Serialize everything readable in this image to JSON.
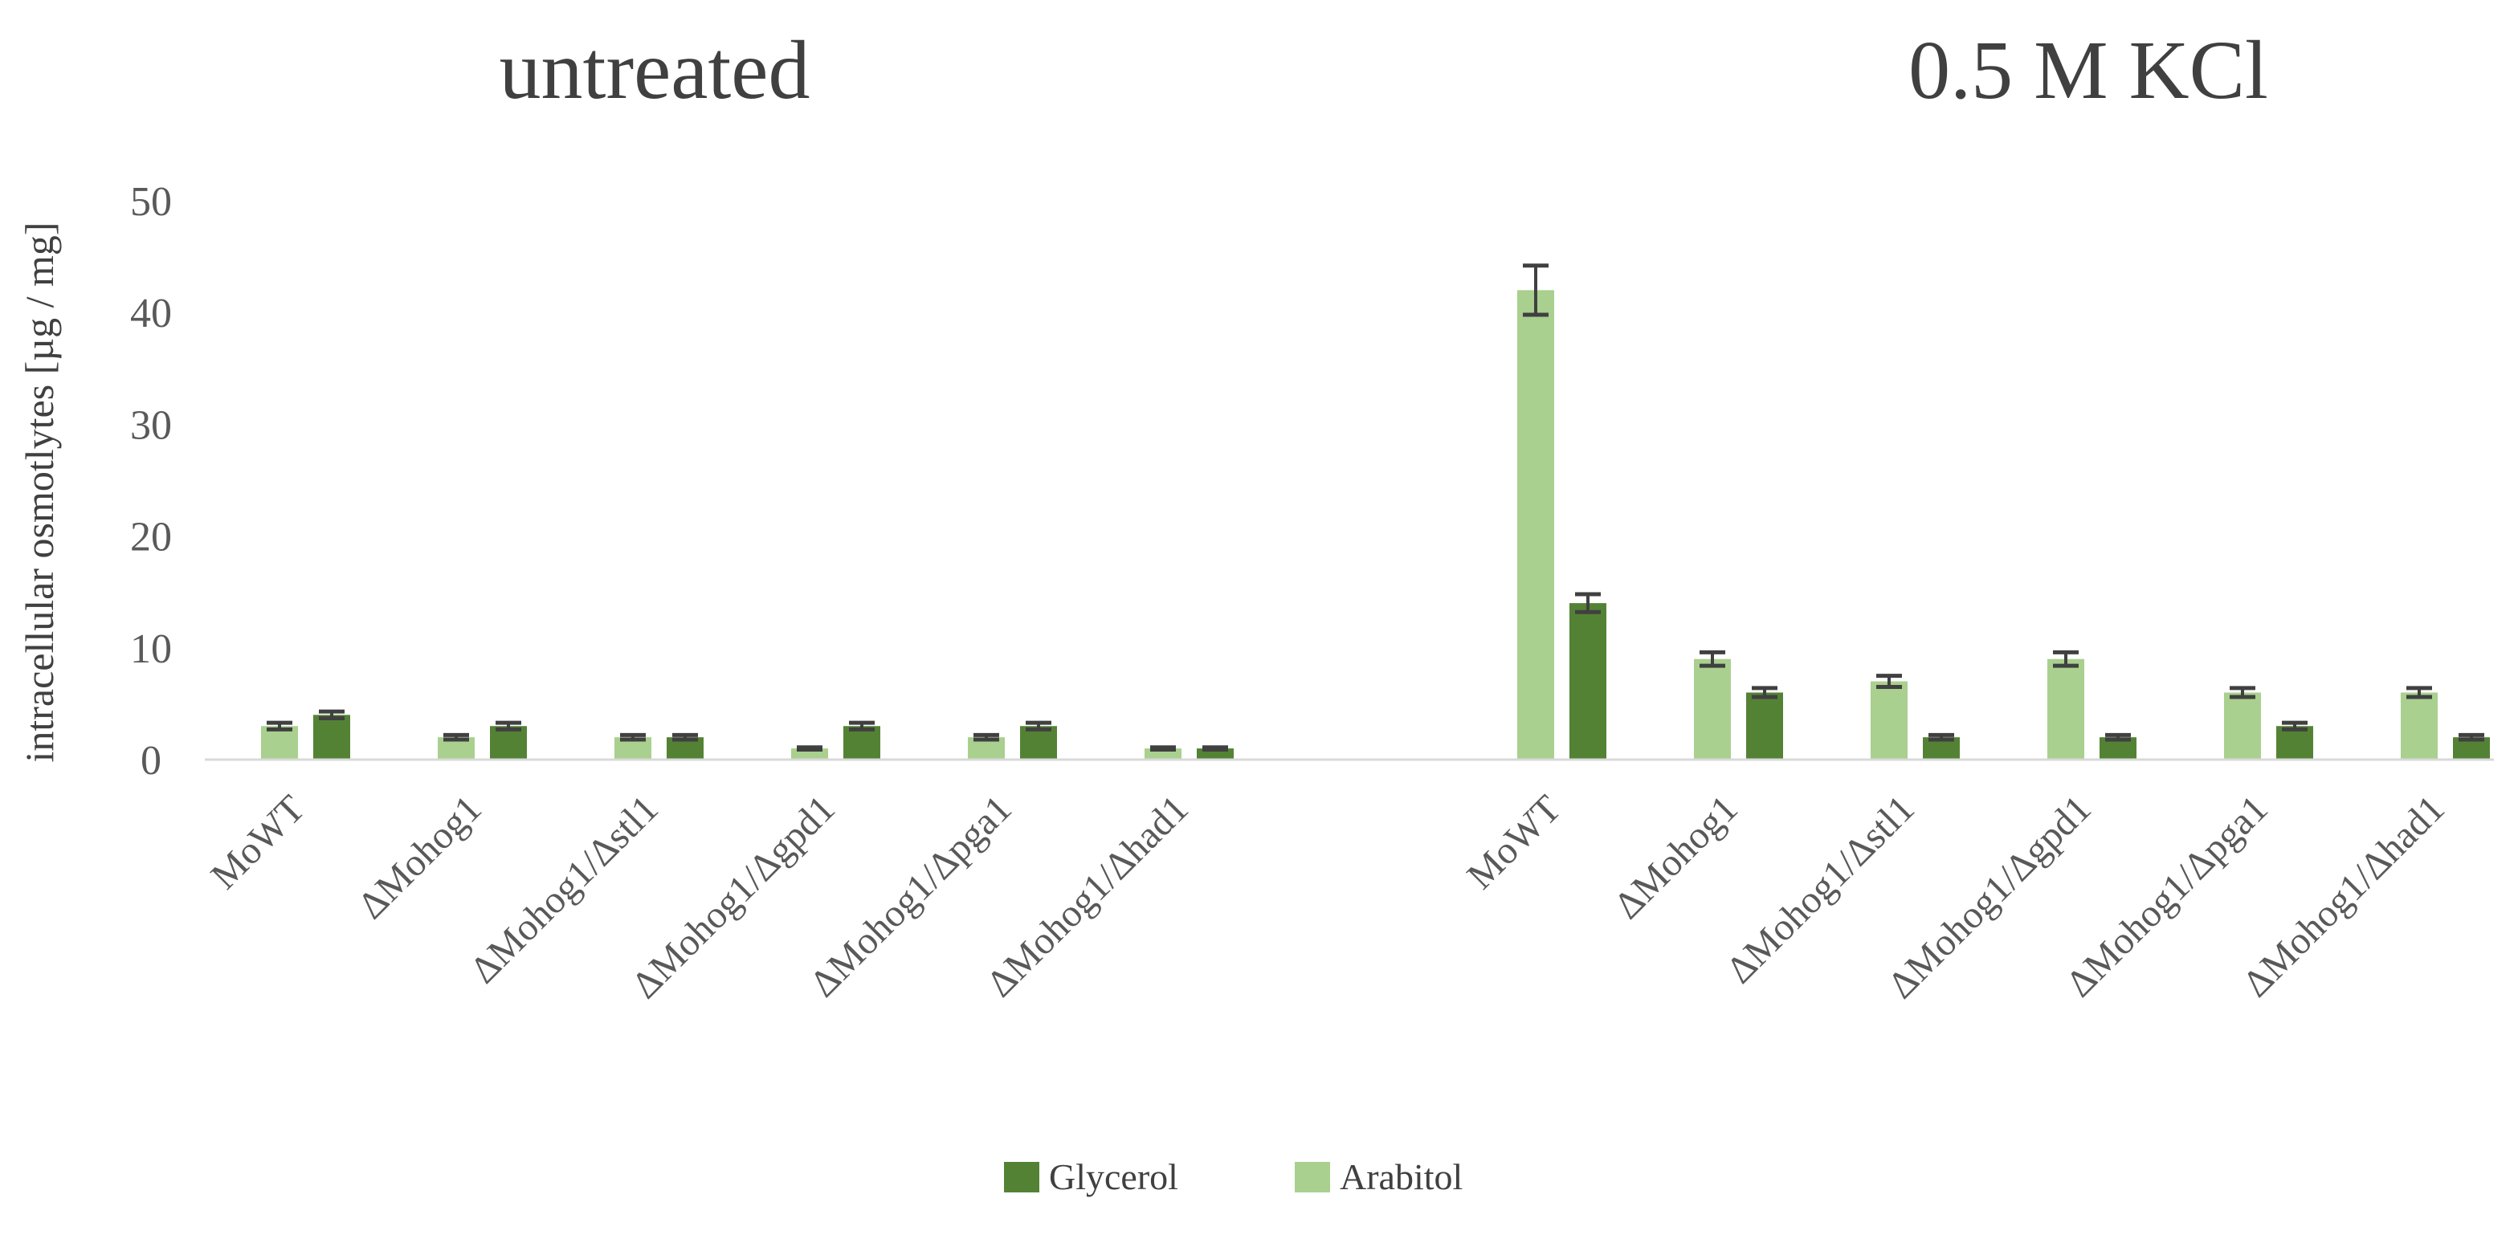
{
  "chart_data": {
    "type": "bar",
    "ylabel": "intracellular osmotlytes [µg / mg]",
    "ylim": [
      0,
      50
    ],
    "yticks": [
      0,
      10,
      20,
      30,
      40,
      50
    ],
    "grid": false,
    "legend_position": "bottom",
    "colors": {
      "Arabitol": "#a9d08e",
      "Glycerol": "#548235",
      "axis": "#d9d9d9",
      "errorbar": "#404040"
    },
    "legend": [
      "Glycerol",
      "Arabitol"
    ],
    "panels": [
      {
        "title": "untreated",
        "categories": [
          "MoWT",
          "ΔMohog1",
          "ΔMohog1/Δstl1",
          "ΔMohog1/Δgpd1",
          "ΔMohog1/Δpga1",
          "ΔMohog1/Δhad1"
        ],
        "series": [
          {
            "name": "Arabitol",
            "values": [
              3,
              2,
              2,
              1,
              2,
              1
            ],
            "errors": [
              0.3,
              0.2,
              0.2,
              0.1,
              0.2,
              0.1
            ]
          },
          {
            "name": "Glycerol",
            "values": [
              4,
              3,
              2,
              3,
              3,
              1
            ],
            "errors": [
              0.3,
              0.3,
              0.2,
              0.3,
              0.3,
              0.1
            ]
          }
        ]
      },
      {
        "title": "0.5 M KCl",
        "categories": [
          "MoWT",
          "ΔMohog1",
          "ΔMohog1/Δstl1",
          "ΔMohog1/Δgpd1",
          "ΔMohog1/Δpga1",
          "ΔMohog1/Δhad1"
        ],
        "series": [
          {
            "name": "Arabitol",
            "values": [
              42,
              9,
              7,
              9,
              6,
              6
            ],
            "errors": [
              2.2,
              0.6,
              0.5,
              0.6,
              0.4,
              0.4
            ]
          },
          {
            "name": "Glycerol",
            "values": [
              14,
              6,
              2,
              2,
              3,
              2
            ],
            "errors": [
              0.8,
              0.4,
              0.2,
              0.2,
              0.3,
              0.2
            ]
          }
        ]
      }
    ]
  }
}
